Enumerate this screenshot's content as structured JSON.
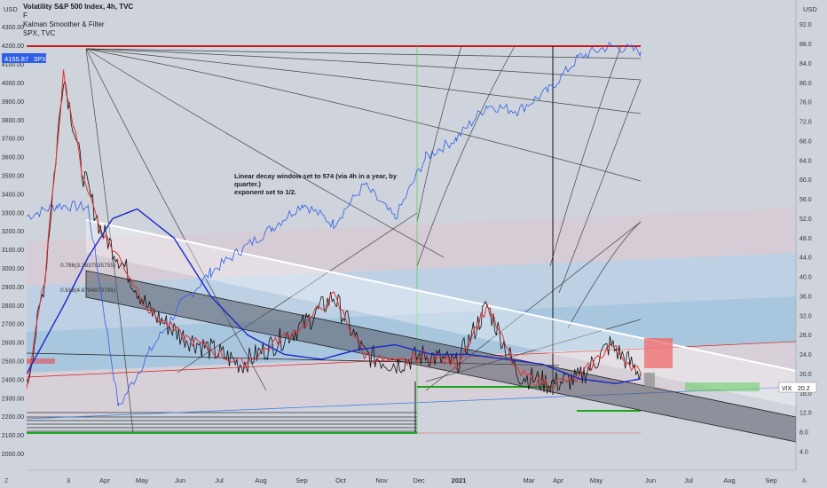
{
  "header": {
    "title": "Volatility S&P 500 Index, 4h, TVC",
    "line2": "F",
    "line3": "Kalman Smoother & Filter",
    "line4": "SPX, TVC"
  },
  "currency_left": "USD",
  "currency_right": "USD",
  "annotation": {
    "line1": "Linear decay window set to 574 (via 4h in a year, by quarter.)",
    "line2": "exponent set to 1/2."
  },
  "badges": {
    "spx_price": "4155.87",
    "spx_label": "SPX",
    "vix_label": "VIX",
    "vix_value": "20.2"
  },
  "fib_labels": [
    "0.786(3.3837935755)",
    "0.618(4.6784973795)"
  ],
  "bottom_corners": {
    "left": "Z",
    "right": "A"
  },
  "colors": {
    "background": "#cfd4dc",
    "spx_line": "#2f5ee8",
    "vix_line": "#111111",
    "smoother": "#1a28c8",
    "kalman": "#e23030",
    "white_band": "#ffffff",
    "dark_band": "#555a66",
    "support_green": "#1aa51a",
    "resistance_red": "#d01818"
  },
  "chart_data": {
    "type": "line",
    "title": "Volatility S&P 500 Index, 4h, TVC",
    "x_tick_labels": [
      "3",
      "Apr",
      "May",
      "Jun",
      "Jul",
      "Aug",
      "Sep",
      "Oct",
      "Nov",
      "Dec",
      "2021",
      "Mar",
      "Apr",
      "May",
      "Jun",
      "Jul",
      "Aug",
      "Sep"
    ],
    "left_axis": {
      "ticks": [
        4300,
        4200,
        4100,
        4000,
        3900,
        3800,
        3700,
        3600,
        3500,
        3400,
        3300,
        3200,
        3100,
        3000,
        2900,
        2800,
        2700,
        2600,
        2500,
        2400,
        2300,
        2200,
        2100,
        2000
      ],
      "ylim": [
        1950,
        4380
      ]
    },
    "right_axis": {
      "ticks": [
        92.0,
        88.0,
        84.0,
        80.0,
        76.0,
        72.0,
        68.0,
        64.0,
        60.0,
        56.0,
        52.0,
        48.0,
        44.0,
        40.0,
        36.0,
        32.0,
        28.0,
        24.0,
        20.0,
        16.0,
        12.0,
        8.0,
        4.0
      ],
      "ylim": [
        1.6,
        94.5
      ]
    },
    "series": [
      {
        "name": "SPX",
        "axis": "left",
        "x": [
          0,
          5,
          10,
          15,
          20,
          25,
          30,
          35,
          40,
          45,
          50,
          55,
          60,
          65,
          70,
          75,
          80,
          85,
          90,
          95,
          100
        ],
        "y": [
          3280,
          3340,
          3330,
          2250,
          2550,
          2800,
          2980,
          3100,
          3220,
          3350,
          3240,
          3450,
          3270,
          3600,
          3700,
          3880,
          3850,
          3960,
          4140,
          4200,
          4170
        ]
      },
      {
        "name": "VIX",
        "axis": "right",
        "x": [
          0,
          3,
          6,
          9,
          12,
          16,
          20,
          25,
          30,
          35,
          40,
          45,
          50,
          55,
          60,
          65,
          70,
          75,
          80,
          85,
          90,
          95,
          100
        ],
        "y": [
          17.0,
          40.0,
          82.0,
          62.0,
          50.0,
          42.0,
          33.0,
          28.0,
          25.0,
          22.0,
          26.0,
          30.0,
          36.0,
          24.0,
          22.0,
          24.0,
          22.0,
          34.0,
          20.0,
          18.0,
          19.0,
          26.0,
          20.2
        ]
      }
    ],
    "legend": [
      "Kalman Smoother & Filter",
      "SPX, TVC"
    ],
    "grid": false
  }
}
